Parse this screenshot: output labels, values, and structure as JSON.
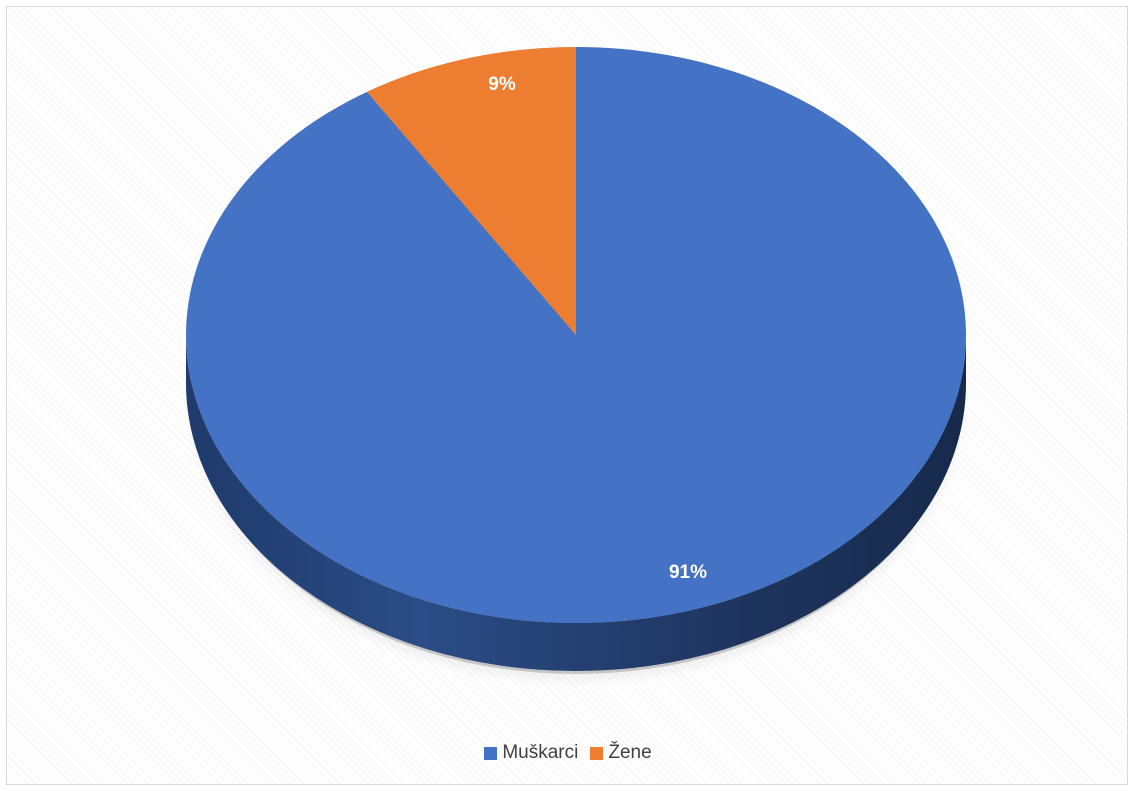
{
  "chart_data": {
    "type": "pie",
    "categories": [
      "Muškarci",
      "Žene"
    ],
    "values": [
      91,
      9
    ],
    "labels": [
      "91%",
      "9%"
    ],
    "colors": [
      "#4472C4",
      "#ED7D31"
    ],
    "side_colors": [
      "#2F5396",
      "#B85A1B"
    ],
    "legend_position": "bottom",
    "style": "3d"
  }
}
